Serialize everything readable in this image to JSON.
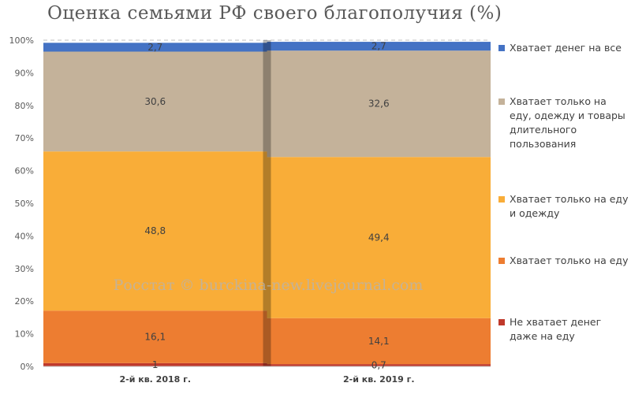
{
  "chart_data": {
    "type": "bar",
    "stacked": true,
    "percent": true,
    "title": "Оценка семьями РФ своего благополучия (%)",
    "categories": [
      "2-й кв. 2018 г.",
      "2-й кв. 2019 г."
    ],
    "series": [
      {
        "name": "Не хватает денег даже на еду",
        "color": "#c0392b",
        "values": [
          1,
          0.7
        ],
        "labels": [
          "1",
          "0,7"
        ]
      },
      {
        "name": "Хватает только на еду",
        "color": "#ed7d31",
        "values": [
          16.1,
          14.1
        ],
        "labels": [
          "16,1",
          "14,1"
        ]
      },
      {
        "name": "Хватает только на еду и одежду",
        "color": "#f9ad38",
        "values": [
          48.8,
          49.4
        ],
        "labels": [
          "48,8",
          "49,4"
        ]
      },
      {
        "name": "Хватает только на еду, одежду и товары длительного пользования",
        "color": "#c4b29a",
        "values": [
          30.6,
          32.6
        ],
        "labels": [
          "30,6",
          "32,6"
        ]
      },
      {
        "name": "Хватает денег на все",
        "color": "#4472c4",
        "values": [
          2.7,
          2.7
        ],
        "labels": [
          "2,7",
          "2,7"
        ]
      }
    ],
    "y_ticks": [
      "0%",
      "10%",
      "20%",
      "30%",
      "40%",
      "50%",
      "60%",
      "70%",
      "80%",
      "90%",
      "100%"
    ],
    "ylim": [
      0,
      100
    ],
    "grid": true,
    "legend_position": "right",
    "watermark": "Росстат © burckina-new.livejournal.com"
  }
}
